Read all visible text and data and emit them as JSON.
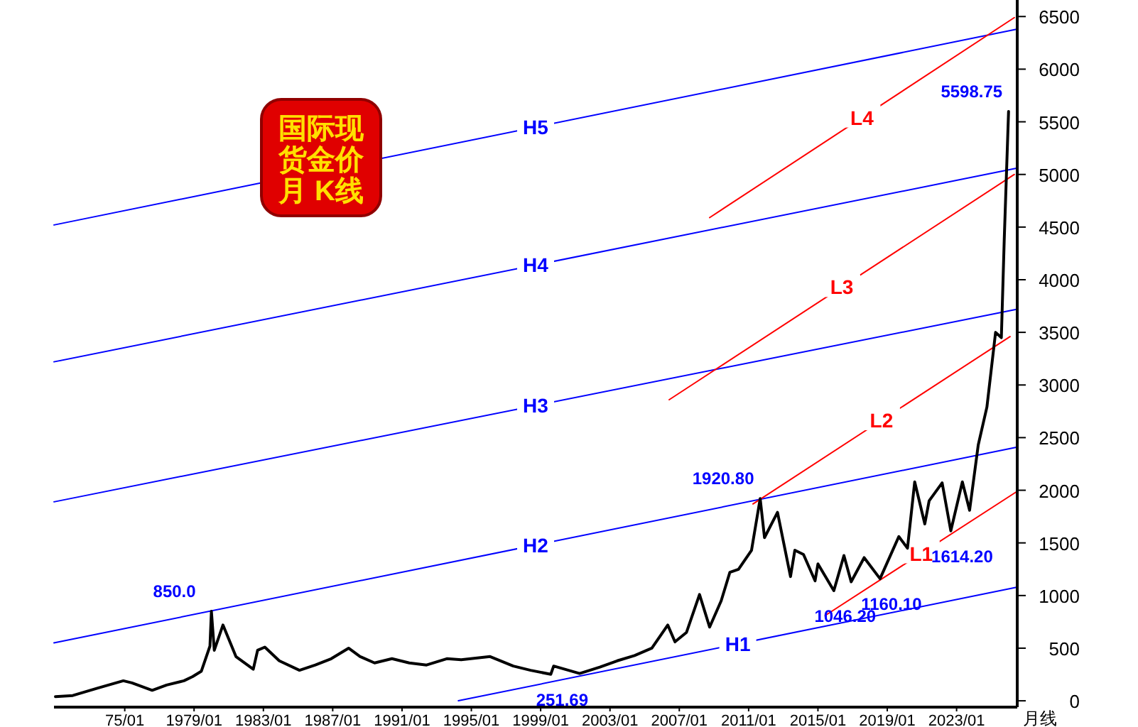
{
  "chart_data": {
    "type": "line",
    "title": "国际现货金价月 K线",
    "xlabel": "月线",
    "xlim": [
      "1970-12",
      "2026-07"
    ],
    "ylim": [
      -60,
      6630
    ],
    "xticks": [
      {
        "value": "1975-01",
        "label": "75/01"
      },
      {
        "value": "1979-01",
        "label": "1979/01"
      },
      {
        "value": "1983-01",
        "label": "1983/01"
      },
      {
        "value": "1987-01",
        "label": "1987/01"
      },
      {
        "value": "1991-01",
        "label": "1991/01"
      },
      {
        "value": "1995-01",
        "label": "1995/01"
      },
      {
        "value": "1999-01",
        "label": "1999/01"
      },
      {
        "value": "2003-01",
        "label": "2003/01"
      },
      {
        "value": "2007-01",
        "label": "2007/01"
      },
      {
        "value": "2011-01",
        "label": "2011/01"
      },
      {
        "value": "2015-01",
        "label": "2015/01"
      },
      {
        "value": "2019-01",
        "label": "2019/01"
      },
      {
        "value": "2023-01",
        "label": "2023/01"
      }
    ],
    "yticks": [
      0,
      500,
      1000,
      1500,
      2000,
      2500,
      3000,
      3500,
      4000,
      4500,
      5000,
      5500,
      6000,
      6500
    ],
    "series": [
      {
        "color": "#000000",
        "x": [
          "1971-01",
          "1972-01",
          "1973-06",
          "1974-12",
          "1975-06",
          "1976-08",
          "1977-06",
          "1978-06",
          "1978-12",
          "1979-06",
          "1979-09",
          "1979-12",
          "1980-01",
          "1980-03",
          "1980-09",
          "1981-06",
          "1982-06",
          "1982-09",
          "1983-02",
          "1983-12",
          "1985-02",
          "1986-01",
          "1986-12",
          "1987-12",
          "1988-08",
          "1989-06",
          "1990-06",
          "1991-06",
          "1992-06",
          "1993-08",
          "1994-06",
          "1996-02",
          "1997-06",
          "1998-06",
          "1999-08",
          "1999-10",
          "2001-04",
          "2002-06",
          "2003-06",
          "2004-06",
          "2005-06",
          "2006-05",
          "2006-10",
          "2007-06",
          "2008-03",
          "2008-10",
          "2009-06",
          "2009-12",
          "2010-06",
          "2011-03",
          "2011-09",
          "2011-12",
          "2012-09",
          "2013-06",
          "2013-09",
          "2014-03",
          "2014-11",
          "2015-01",
          "2015-12",
          "2016-07",
          "2016-12",
          "2017-09",
          "2018-08",
          "2019-09",
          "2020-03",
          "2020-08",
          "2021-03",
          "2021-06",
          "2022-03",
          "2022-09",
          "2023-05",
          "2023-10",
          "2024-04",
          "2024-10",
          "2025-04",
          "2025-08",
          "2025-10",
          "2026-01"
        ],
        "values": [
          40,
          50,
          120,
          190,
          170,
          100,
          150,
          190,
          230,
          280,
          400,
          520,
          850,
          480,
          720,
          420,
          300,
          480,
          510,
          380,
          290,
          340,
          400,
          500,
          420,
          360,
          400,
          360,
          340,
          400,
          390,
          420,
          330,
          290,
          251.69,
          330,
          260,
          320,
          380,
          430,
          500,
          720,
          560,
          650,
          1010,
          700,
          950,
          1220,
          1250,
          1430,
          1920.8,
          1550,
          1790,
          1180,
          1430,
          1390,
          1140,
          1300,
          1046.2,
          1380,
          1130,
          1360,
          1160.1,
          1560,
          1450,
          2080,
          1680,
          1900,
          2070,
          1614.2,
          2080,
          1810,
          2430,
          2790,
          3500,
          3450,
          4380,
          5598.75
        ]
      },
      {
        "type": "line",
        "name": "H1",
        "color": "#0000ff",
        "x": [
          "1994-04",
          "2026-07"
        ],
        "values": [
          0,
          1080
        ]
      },
      {
        "type": "line",
        "name": "H2",
        "color": "#0000ff",
        "x": [
          "1970-12",
          "2026-07"
        ],
        "values": [
          550,
          2410
        ]
      },
      {
        "type": "line",
        "name": "H3",
        "color": "#0000ff",
        "x": [
          "1970-12",
          "2026-07"
        ],
        "values": [
          1890,
          3720
        ]
      },
      {
        "type": "line",
        "name": "H4",
        "color": "#0000ff",
        "x": [
          "1970-12",
          "2026-07"
        ],
        "values": [
          3220,
          5060
        ]
      },
      {
        "type": "line",
        "name": "H5",
        "color": "#0000ff",
        "x": [
          "1970-12",
          "2026-07"
        ],
        "values": [
          4520,
          6380
        ]
      },
      {
        "type": "line",
        "name": "L1",
        "color": "#ff0000",
        "x": [
          "2015-06",
          "2026-07"
        ],
        "values": [
          810,
          1990
        ]
      },
      {
        "type": "line",
        "name": "L2",
        "color": "#ff0000",
        "x": [
          "2011-04",
          "2026-02"
        ],
        "values": [
          1870,
          3460
        ]
      },
      {
        "type": "line",
        "name": "L3",
        "color": "#ff0000",
        "x": [
          "2006-06",
          "2026-05"
        ],
        "values": [
          2860,
          5000
        ]
      },
      {
        "type": "line",
        "name": "L4",
        "color": "#ff0000",
        "x": [
          "2008-10",
          "2026-05"
        ],
        "values": [
          4590,
          6490
        ]
      }
    ],
    "annotations": [
      {
        "text": "850.0",
        "x": "1980-01",
        "y": 850
      },
      {
        "text": "251.69",
        "x": "1999-08",
        "y": 251.69
      },
      {
        "text": "1920.80",
        "x": "2011-09",
        "y": 1920.8
      },
      {
        "text": "1046.20",
        "x": "2015-12",
        "y": 1046.2
      },
      {
        "text": "1160.10",
        "x": "2018-08",
        "y": 1160.1
      },
      {
        "text": "1614.20",
        "x": "2022-09",
        "y": 1614.2
      },
      {
        "text": "5598.75",
        "x": "2026-01",
        "y": 5598.75
      }
    ]
  }
}
